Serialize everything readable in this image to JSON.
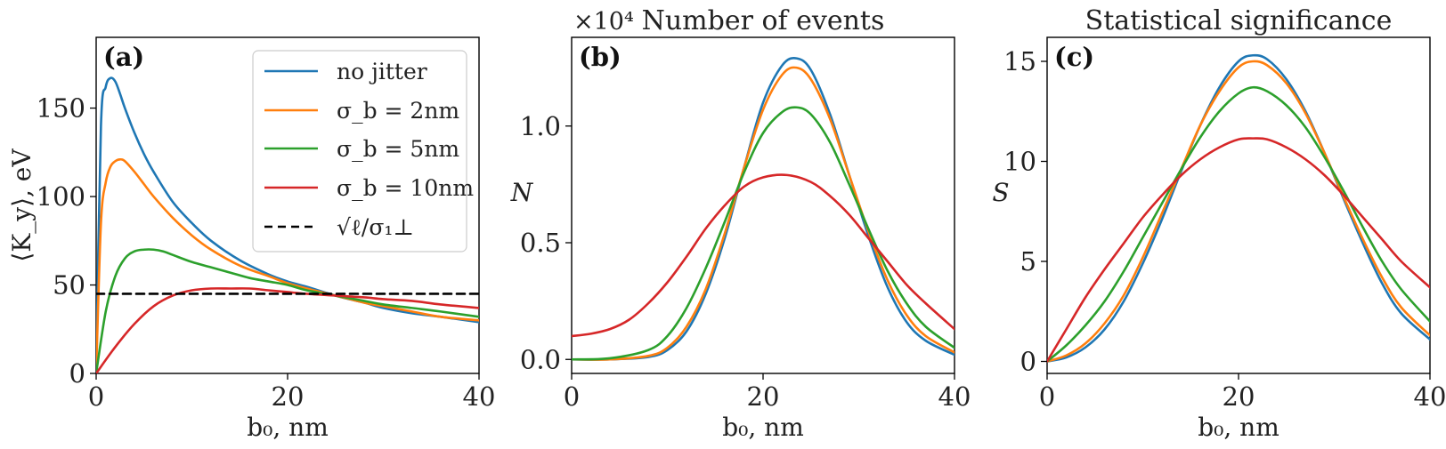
{
  "chart_data": [
    {
      "type": "line",
      "panel_label": "(a)",
      "title": "",
      "xlabel": "b₀, nm",
      "ylabel": "⟨K_y⟩, eV",
      "xlim": [
        0,
        40
      ],
      "ylim": [
        0,
        190
      ],
      "xticks": [
        "0",
        "20",
        "40"
      ],
      "yticks": [
        "0",
        "50",
        "100",
        "150"
      ],
      "xtick_values": [
        0,
        20,
        40
      ],
      "ytick_values": [
        0,
        50,
        100,
        150
      ],
      "legend_position": "top-right",
      "series": [
        {
          "name": "no jitter",
          "color": "#1f77b4",
          "x": [
            0,
            0.5,
            1,
            1.5,
            2,
            2.5,
            3,
            4,
            5,
            6,
            8,
            10,
            12,
            15,
            18,
            20,
            22,
            25,
            28,
            30,
            33,
            36,
            40
          ],
          "y": [
            0,
            140,
            162,
            167,
            165,
            158,
            150,
            136,
            124,
            114,
            97,
            85,
            75,
            64,
            56,
            52,
            49,
            44,
            40,
            37,
            34,
            32,
            29
          ]
        },
        {
          "name": "σ_b = 2nm",
          "color": "#ff7f0e",
          "x": [
            0,
            0.5,
            1,
            1.5,
            2,
            2.5,
            3,
            4,
            5,
            6,
            8,
            10,
            12,
            15,
            18,
            20,
            22,
            25,
            28,
            30,
            33,
            36,
            40
          ],
          "y": [
            0,
            85,
            108,
            117,
            120,
            121,
            120,
            114,
            107,
            100,
            88,
            78,
            70,
            61,
            55,
            51,
            48,
            44,
            40,
            38,
            35,
            32,
            30
          ]
        },
        {
          "name": "σ_b = 5nm",
          "color": "#2ca02c",
          "x": [
            0,
            1,
            2,
            3,
            4,
            5,
            6,
            7,
            8,
            10,
            12,
            14,
            16,
            18,
            20,
            22,
            25,
            28,
            30,
            33,
            36,
            40
          ],
          "y": [
            0,
            35,
            55,
            65,
            69,
            70,
            70,
            69,
            67,
            63,
            60,
            57,
            54,
            52,
            50,
            47,
            44,
            41,
            39,
            37,
            35,
            32
          ]
        },
        {
          "name": "σ_b = 10nm",
          "color": "#d62728",
          "x": [
            0,
            2,
            4,
            6,
            8,
            10,
            12,
            14,
            16,
            18,
            20,
            22,
            25,
            28,
            30,
            33,
            36,
            40
          ],
          "y": [
            0,
            15,
            28,
            38,
            44,
            47,
            48,
            48,
            48,
            47,
            46,
            45,
            44,
            43,
            42,
            41,
            39,
            37
          ]
        },
        {
          "name": "√ℓ/σ₁⊥",
          "color": "#000000",
          "dashed": true,
          "x": [
            0,
            40
          ],
          "y": [
            45,
            45
          ]
        }
      ]
    },
    {
      "type": "line",
      "panel_label": "(b)",
      "title": "Number of events",
      "xlabel": "b₀, nm",
      "ylabel": "N",
      "scale_label": "×10⁴",
      "xlim": [
        0,
        40
      ],
      "ylim": [
        -0.06,
        1.38
      ],
      "xticks": [
        "0",
        "20",
        "40"
      ],
      "yticks": [
        "0.0",
        "0.5",
        "1.0"
      ],
      "xtick_values": [
        0,
        20,
        40
      ],
      "ytick_values": [
        0,
        0.5,
        1.0
      ],
      "series": [
        {
          "name": "no jitter",
          "color": "#1f77b4",
          "x": [
            0,
            4,
            8,
            10,
            12,
            14,
            16,
            18,
            20,
            22,
            23.5,
            25,
            27,
            29,
            31,
            33,
            35,
            37,
            40
          ],
          "y": [
            0,
            0,
            0.01,
            0.04,
            0.12,
            0.28,
            0.52,
            0.82,
            1.1,
            1.26,
            1.29,
            1.24,
            1.05,
            0.79,
            0.53,
            0.31,
            0.16,
            0.08,
            0.02
          ]
        },
        {
          "name": "σ_b = 2nm",
          "color": "#ff7f0e",
          "x": [
            0,
            4,
            8,
            10,
            12,
            14,
            16,
            18,
            20,
            22,
            23.5,
            25,
            27,
            29,
            31,
            33,
            35,
            37,
            40
          ],
          "y": [
            0,
            0,
            0.015,
            0.05,
            0.14,
            0.3,
            0.54,
            0.82,
            1.07,
            1.22,
            1.25,
            1.2,
            1.03,
            0.79,
            0.55,
            0.34,
            0.19,
            0.1,
            0.03
          ]
        },
        {
          "name": "σ_b = 5nm",
          "color": "#2ca02c",
          "x": [
            0,
            4,
            8,
            10,
            12,
            14,
            16,
            18,
            20,
            22,
            23.5,
            25,
            27,
            29,
            31,
            33,
            35,
            37,
            40
          ],
          "y": [
            0,
            0.005,
            0.04,
            0.1,
            0.22,
            0.39,
            0.59,
            0.8,
            0.97,
            1.06,
            1.08,
            1.05,
            0.93,
            0.75,
            0.56,
            0.38,
            0.24,
            0.14,
            0.05
          ]
        },
        {
          "name": "σ_b = 10nm",
          "color": "#d62728",
          "x": [
            0,
            2,
            4,
            6,
            8,
            10,
            12,
            14,
            16,
            18,
            20,
            22.5,
            25,
            27,
            29,
            31,
            33,
            35,
            37,
            40
          ],
          "y": [
            0.1,
            0.11,
            0.13,
            0.17,
            0.24,
            0.33,
            0.44,
            0.56,
            0.66,
            0.74,
            0.78,
            0.79,
            0.76,
            0.7,
            0.62,
            0.52,
            0.42,
            0.32,
            0.24,
            0.13
          ]
        }
      ]
    },
    {
      "type": "line",
      "panel_label": "(c)",
      "title": "Statistical significance",
      "xlabel": "b₀, nm",
      "ylabel": "S",
      "xlim": [
        0,
        40
      ],
      "ylim": [
        -0.6,
        16.2
      ],
      "xticks": [
        "0",
        "20",
        "40"
      ],
      "yticks": [
        "0",
        "5",
        "10",
        "15"
      ],
      "xtick_values": [
        0,
        20,
        40
      ],
      "ytick_values": [
        0,
        5,
        10,
        15
      ],
      "series": [
        {
          "name": "no jitter",
          "color": "#1f77b4",
          "x": [
            0,
            2,
            4,
            6,
            8,
            10,
            12,
            14,
            16,
            18,
            20,
            21.5,
            23,
            25,
            27,
            29,
            31,
            33,
            35,
            37,
            40
          ],
          "y": [
            0,
            0.2,
            0.7,
            1.6,
            3.0,
            4.9,
            7.1,
            9.5,
            11.8,
            13.7,
            15.0,
            15.3,
            15.1,
            14.1,
            12.5,
            10.4,
            8.1,
            5.9,
            3.9,
            2.4,
            1.1
          ]
        },
        {
          "name": "σ_b = 2nm",
          "color": "#ff7f0e",
          "x": [
            0,
            2,
            4,
            6,
            8,
            10,
            12,
            14,
            16,
            18,
            20,
            21.5,
            23,
            25,
            27,
            29,
            31,
            33,
            35,
            37,
            40
          ],
          "y": [
            0,
            0.3,
            0.9,
            1.9,
            3.3,
            5.2,
            7.4,
            9.6,
            11.8,
            13.5,
            14.7,
            15.0,
            14.8,
            13.9,
            12.4,
            10.4,
            8.2,
            6.1,
            4.2,
            2.7,
            1.3
          ]
        },
        {
          "name": "σ_b = 5nm",
          "color": "#2ca02c",
          "x": [
            0,
            2,
            4,
            6,
            8,
            10,
            12,
            14,
            16,
            18,
            20,
            21.5,
            23,
            25,
            27,
            29,
            31,
            33,
            35,
            37,
            40
          ],
          "y": [
            0,
            0.8,
            1.8,
            3.0,
            4.5,
            6.2,
            7.9,
            9.6,
            11.2,
            12.5,
            13.4,
            13.7,
            13.5,
            12.8,
            11.7,
            10.2,
            8.5,
            6.7,
            5.0,
            3.6,
            2.0
          ]
        },
        {
          "name": "σ_b = 10nm",
          "color": "#d62728",
          "x": [
            0,
            2,
            4,
            6,
            8,
            10,
            12,
            14,
            16,
            18,
            20,
            21.5,
            23,
            25,
            27,
            29,
            31,
            33,
            35,
            37,
            40
          ],
          "y": [
            0,
            1.6,
            3.2,
            4.6,
            5.9,
            7.2,
            8.3,
            9.3,
            10.1,
            10.7,
            11.1,
            11.15,
            11.1,
            10.7,
            10.1,
            9.3,
            8.3,
            7.2,
            6.1,
            5.0,
            3.7
          ]
        }
      ]
    }
  ]
}
